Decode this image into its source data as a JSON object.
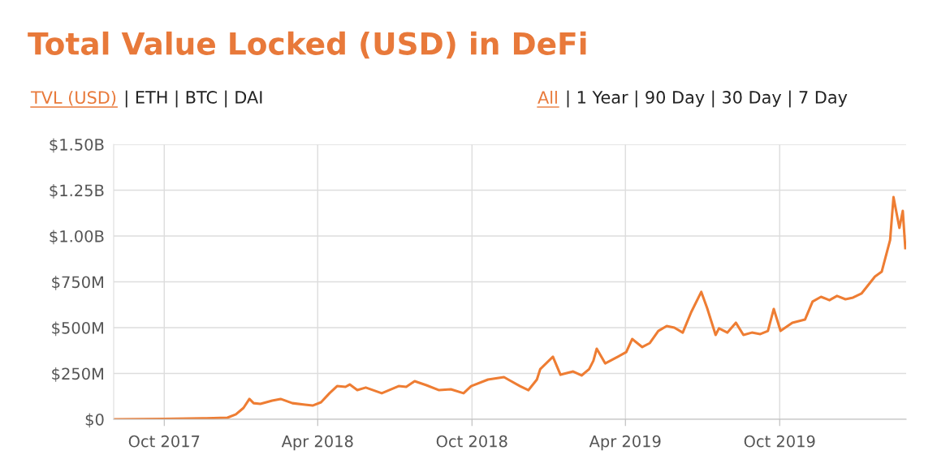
{
  "chart_data": {
    "type": "line",
    "title": "Total Value Locked (USD) in DeFi",
    "annotations": [
      "TVL (USD)",
      "| ETH | BTC | DAI",
      "All",
      "| 1 Year | 90 Day | 30 Day | 7 Day"
    ],
    "x": [
      "2017-08-02",
      "2017-10-01",
      "2017-11-15",
      "2017-12-15",
      "2017-12-25",
      "2018-01-03",
      "2018-01-10",
      "2018-01-15",
      "2018-01-23",
      "2018-02-06",
      "2018-02-16",
      "2018-03-02",
      "2018-03-17",
      "2018-03-26",
      "2018-04-05",
      "2018-04-15",
      "2018-04-24",
      "2018-05-04",
      "2018-05-09",
      "2018-05-18",
      "2018-05-28",
      "2018-06-16",
      "2018-07-06",
      "2018-07-15",
      "2018-07-25",
      "2018-08-08",
      "2018-08-23",
      "2018-09-06",
      "2018-09-21",
      "2018-09-30",
      "2018-10-20",
      "2018-11-08",
      "2018-11-13",
      "2018-11-27",
      "2018-12-07",
      "2018-12-17",
      "2018-12-21",
      "2019-01-05",
      "2019-01-14",
      "2019-01-29",
      "2019-02-08",
      "2019-02-17",
      "2019-02-22",
      "2019-02-26",
      "2019-03-08",
      "2019-03-23",
      "2019-04-02",
      "2019-04-09",
      "2019-04-21",
      "2019-04-30",
      "2019-05-10",
      "2019-05-20",
      "2019-05-29",
      "2019-06-08",
      "2019-06-18",
      "2019-06-30",
      "2019-07-07",
      "2019-07-17",
      "2019-07-21",
      "2019-07-31",
      "2019-08-10",
      "2019-08-19",
      "2019-08-29",
      "2019-09-08",
      "2019-09-17",
      "2019-09-24",
      "2019-10-02",
      "2019-10-16",
      "2019-10-31",
      "2019-11-09",
      "2019-11-19",
      "2019-11-29",
      "2019-12-08",
      "2019-12-18",
      "2019-12-27",
      "2020-01-06",
      "2020-01-22",
      "2020-01-30",
      "2020-02-09",
      "2020-02-13",
      "2020-02-20",
      "2020-02-24",
      "2020-02-27"
    ],
    "series": [
      {
        "color": "#ee7d33",
        "values": [
          0,
          2000000.0,
          5000000.0,
          9000000.0,
          27000000.0,
          62000000.0,
          111000000.0,
          88000000.0,
          84000000.0,
          102000000.0,
          111000000.0,
          88000000.0,
          80000000.0,
          75000000.0,
          93000000.0,
          142000000.0,
          181000000.0,
          177000000.0,
          190000000.0,
          159000000.0,
          173000000.0,
          142000000.0,
          181000000.0,
          177000000.0,
          208000000.0,
          186000000.0,
          159000000.0,
          164000000.0,
          142000000.0,
          181000000.0,
          217000000.0,
          230000000.0,
          217000000.0,
          181000000.0,
          159000000.0,
          217000000.0,
          274000000.0,
          341000000.0,
          243000000.0,
          261000000.0,
          239000000.0,
          274000000.0,
          319000000.0,
          385000000.0,
          305000000.0,
          341000000.0,
          367000000.0,
          438000000.0,
          394000000.0,
          416000000.0,
          482000000.0,
          509000000.0,
          500000000.0,
          473000000.0,
          584000000.0,
          695000000.0,
          606000000.0,
          460000000.0,
          496000000.0,
          473000000.0,
          527000000.0,
          460000000.0,
          473000000.0,
          465000000.0,
          482000000.0,
          602000000.0,
          482000000.0,
          527000000.0,
          544000000.0,
          642000000.0,
          668000000.0,
          650000000.0,
          673000000.0,
          655000000.0,
          664000000.0,
          686000000.0,
          779000000.0,
          805000000.0,
          978000000.0,
          1212000000.0,
          1044000000.0,
          1137000000.0,
          934000000.0
        ]
      }
    ],
    "xlim": [
      "2017-08-02",
      "2020-02-28"
    ],
    "xticks": [
      {
        "value": "2017-10-01",
        "label": "Oct 2017"
      },
      {
        "value": "2018-04-01",
        "label": "Apr 2018"
      },
      {
        "value": "2018-10-01",
        "label": "Oct 2018"
      },
      {
        "value": "2019-04-01",
        "label": "Apr 2019"
      },
      {
        "value": "2019-10-01",
        "label": "Oct 2019"
      }
    ],
    "ylim": [
      0,
      1500000000.0
    ],
    "yticks": [
      {
        "value": 0,
        "label": "$0"
      },
      {
        "value": 250000000.0,
        "label": "$250M"
      },
      {
        "value": 500000000.0,
        "label": "$500M"
      },
      {
        "value": 750000000.0,
        "label": "$750M"
      },
      {
        "value": 1000000000.0,
        "label": "$1.00B"
      },
      {
        "value": 1250000000.0,
        "label": "$1.25B"
      },
      {
        "value": 1500000000.0,
        "label": "$1.50B"
      }
    ],
    "grid": true,
    "legend": false,
    "marker": "none",
    "line_style": "solid"
  }
}
